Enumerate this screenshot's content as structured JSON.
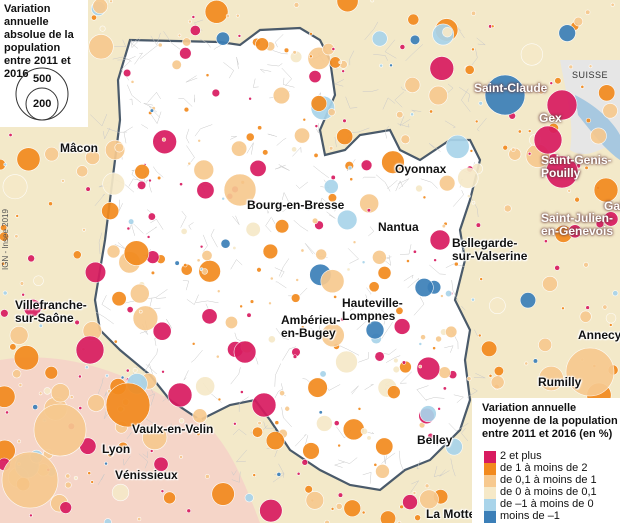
{
  "map": {
    "country_label": "SUISSE",
    "credit": "IGN - Insee 2019",
    "cities": [
      {
        "id": "saint-claude",
        "text": "Saint-Claude",
        "style": "white"
      },
      {
        "id": "gex",
        "text": "Gex",
        "style": "white"
      },
      {
        "id": "saint-genis-pouilly",
        "text": "Saint-Genis-\nPouilly",
        "style": "white"
      },
      {
        "id": "macon",
        "text": "Mâcon",
        "style": "black"
      },
      {
        "id": "oyonnax",
        "text": "Oyonnax",
        "style": "black"
      },
      {
        "id": "bourg-en-bresse",
        "text": "Bourg-en-Bresse",
        "style": "black"
      },
      {
        "id": "nantua",
        "text": "Nantua",
        "style": "black"
      },
      {
        "id": "gai",
        "text": "Gai",
        "style": "white"
      },
      {
        "id": "saint-julien-en-genevois",
        "text": "Saint-Julien-\nen-Genevois",
        "style": "white"
      },
      {
        "id": "bellegarde-sur-valserine",
        "text": "Bellegarde-\nsur-Valserine",
        "style": "black"
      },
      {
        "id": "hauteville-lompnes",
        "text": "Hauteville-\nLompnes",
        "style": "black"
      },
      {
        "id": "villefranche-sur-saone",
        "text": "Villefranche-\nsur-Saône",
        "style": "black"
      },
      {
        "id": "amberieu-en-bugey",
        "text": "Ambérieu-\nen-Bugey",
        "style": "black"
      },
      {
        "id": "annecy",
        "text": "Annecy",
        "style": "black"
      },
      {
        "id": "rumilly",
        "text": "Rumilly",
        "style": "black"
      },
      {
        "id": "vaulx-en-velin",
        "text": "Vaulx-en-Velin",
        "style": "black"
      },
      {
        "id": "lyon",
        "text": "Lyon",
        "style": "black"
      },
      {
        "id": "venissieux",
        "text": "Vénissieux",
        "style": "black"
      },
      {
        "id": "belley",
        "text": "Belley",
        "style": "black"
      },
      {
        "id": "la-motte-s",
        "text": "La Motte-S",
        "style": "black"
      }
    ]
  },
  "size_legend": {
    "title": "Variation annuelle absolue de la population entre 2011 et 2016",
    "large_value": "500",
    "small_value": "200"
  },
  "color_legend": {
    "title": "Variation annuelle moyenne de la population entre 2011 et 2016 (en %)",
    "items": [
      {
        "label": "2 et plus",
        "color": "#d81b60"
      },
      {
        "label": "de 1 à moins de 2",
        "color": "#f28a1e"
      },
      {
        "label": "de 0,1 à moins de 1",
        "color": "#f7c98f"
      },
      {
        "label": "de 0 à moins de 0,1",
        "color": "#f6e9c8"
      },
      {
        "label": "de –1 à moins de 0",
        "color": "#a9d4ea"
      },
      {
        "label": "moins de –1",
        "color": "#3b7fb8"
      }
    ]
  },
  "colors": {
    "background": "#f3e9c9",
    "department_fill": "#ffffff",
    "department_border": "#4a5a6a",
    "lake": "#a7c8e0"
  }
}
